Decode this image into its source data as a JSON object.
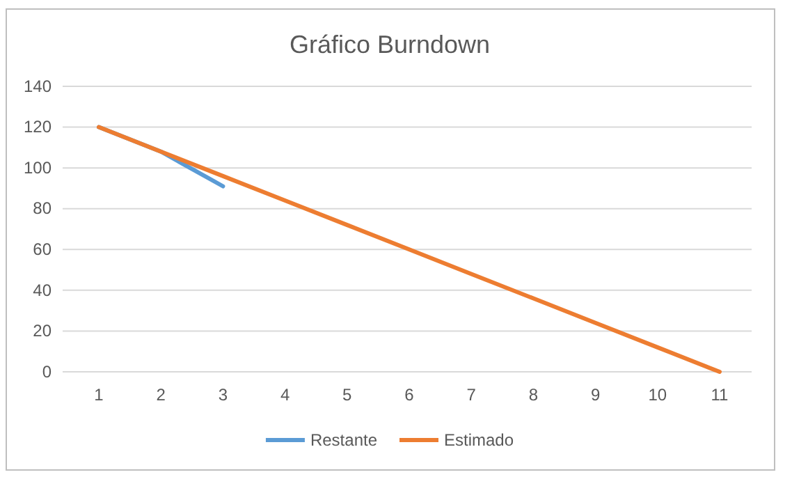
{
  "chart_data": {
    "type": "line",
    "title": "Gráfico Burndown",
    "categories": [
      "1",
      "2",
      "3",
      "4",
      "5",
      "6",
      "7",
      "8",
      "9",
      "10",
      "11"
    ],
    "series": [
      {
        "name": "Restante",
        "color": "#5b9bd5",
        "values": [
          120,
          108,
          91,
          null,
          null,
          null,
          null,
          null,
          null,
          null,
          null
        ]
      },
      {
        "name": "Estimado",
        "color": "#ed7d31",
        "values": [
          120,
          108,
          96,
          84,
          72,
          60,
          48,
          36,
          24,
          12,
          0
        ]
      }
    ],
    "ylim": [
      0,
      140
    ],
    "yticks": [
      0,
      20,
      40,
      60,
      80,
      100,
      120,
      140
    ],
    "grid": "y",
    "legend": "bottom",
    "marker": "none",
    "line_style": "solid"
  }
}
